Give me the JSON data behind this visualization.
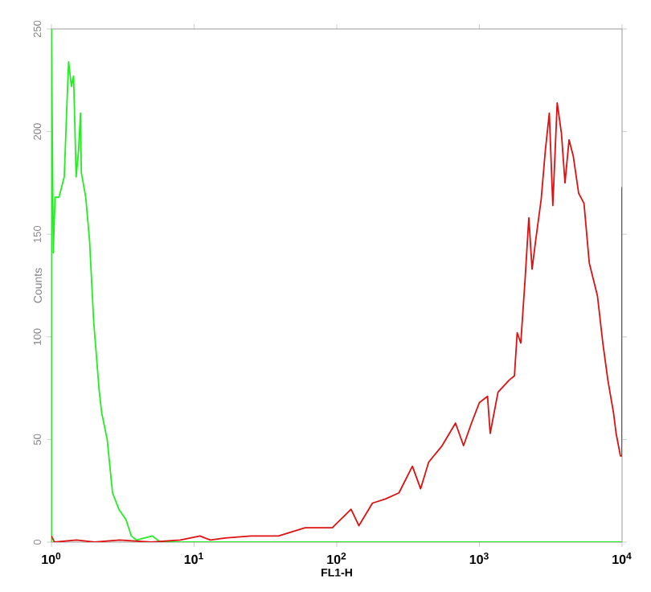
{
  "chart_data": {
    "type": "line",
    "xlabel": "FL1-H",
    "ylabel": "Counts",
    "log": "x",
    "xlim": [
      1,
      10000
    ],
    "ylim": [
      0,
      250
    ],
    "xticks": [
      {
        "value": 1,
        "label": "10$^{0}$"
      },
      {
        "value": 10,
        "label": "10$^{1}$"
      },
      {
        "value": 100,
        "label": "10$^{2}$"
      },
      {
        "value": 1000,
        "label": "10$^{3}$"
      },
      {
        "value": 10000,
        "label": "10$^{4}$"
      }
    ],
    "yticks": [
      0,
      50,
      100,
      150,
      200,
      250
    ],
    "series": [
      {
        "color": "#22ee22",
        "x": [
          1,
          1,
          1.03,
          1.06,
          1.13,
          1.23,
          1.29,
          1.32,
          1.38,
          1.43,
          1.49,
          1.55,
          1.6,
          1.62,
          1.74,
          1.85,
          1.98,
          2.16,
          2.25,
          2.46,
          2.68,
          2.97,
          3.33,
          3.63,
          3.95,
          5.1,
          5.8,
          10000
        ],
        "values": [
          0,
          250,
          141,
          168,
          168,
          178,
          217,
          234,
          222,
          227,
          178,
          191,
          209,
          180,
          168,
          147,
          107,
          74,
          63,
          50,
          24,
          16,
          11,
          3,
          1,
          3,
          0,
          0
        ]
      },
      {
        "color": "#dd1111",
        "x": [
          1,
          1.05,
          1.5,
          2,
          3,
          5,
          8,
          11,
          13,
          16.5,
          25,
          39,
          60,
          93,
          126,
          143,
          178,
          219,
          273,
          339,
          387,
          441,
          548,
          680,
          774,
          880,
          1000,
          1140,
          1190,
          1350,
          1620,
          1760,
          1840,
          1950,
          2090,
          2220,
          2340,
          2480,
          2710,
          2900,
          3090,
          3270,
          3510,
          3760,
          3980,
          4250,
          4550,
          4960,
          5410,
          5890,
          6720,
          7330,
          7950,
          8710,
          9080,
          9740,
          10000,
          10000
        ],
        "values": [
          3,
          0,
          1,
          0,
          1,
          0,
          1,
          3,
          1,
          2,
          3,
          3,
          7,
          7,
          16,
          8,
          19,
          21,
          24,
          37,
          26,
          39,
          47,
          58,
          47,
          58,
          68,
          71,
          53,
          73,
          79,
          81,
          102,
          97,
          128,
          158,
          133,
          147,
          167,
          191,
          209,
          164,
          214,
          199,
          175,
          196,
          188,
          170,
          165,
          136,
          120,
          97,
          79,
          63,
          53,
          42,
          42,
          173
        ]
      }
    ]
  }
}
